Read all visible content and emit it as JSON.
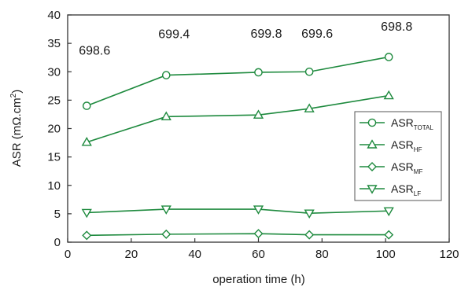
{
  "chart_data": {
    "type": "line",
    "title": "",
    "xlabel": "operation time (h)",
    "ylabel_main": "ASR (mΩ.cm",
    "ylabel_sup": "2",
    "ylabel_end": ")",
    "xlim": [
      0,
      120
    ],
    "ylim": [
      0,
      40
    ],
    "x_ticks": [
      0,
      20,
      40,
      60,
      80,
      100,
      120
    ],
    "y_ticks": [
      0,
      5,
      10,
      15,
      20,
      25,
      30,
      35,
      40
    ],
    "x": [
      6,
      31,
      60,
      76,
      101
    ],
    "series": [
      {
        "name": "ASR",
        "name_sub": "TOTAL",
        "marker": "circle",
        "values": [
          24.0,
          29.4,
          29.9,
          30.0,
          32.6
        ]
      },
      {
        "name": "ASR",
        "name_sub": "HF",
        "marker": "triangle-up",
        "values": [
          17.6,
          22.1,
          22.4,
          23.5,
          25.8
        ]
      },
      {
        "name": "ASR",
        "name_sub": "MF",
        "marker": "diamond",
        "values": [
          1.2,
          1.4,
          1.5,
          1.3,
          1.3
        ]
      },
      {
        "name": "ASR",
        "name_sub": "LF",
        "marker": "triangle-down",
        "values": [
          5.2,
          5.8,
          5.8,
          5.1,
          5.5
        ]
      }
    ],
    "annotations": [
      {
        "text": "698.6",
        "x": 6,
        "y": 33.0
      },
      {
        "text": "699.4",
        "x": 31,
        "y": 35.9
      },
      {
        "text": "699.8",
        "x": 60,
        "y": 36.0
      },
      {
        "text": "699.6",
        "x": 76,
        "y": 36.0
      },
      {
        "text": "698.8",
        "x": 101,
        "y": 37.2
      }
    ],
    "legend_position": "right",
    "grid": false,
    "line_color": "#1e8a3e"
  }
}
